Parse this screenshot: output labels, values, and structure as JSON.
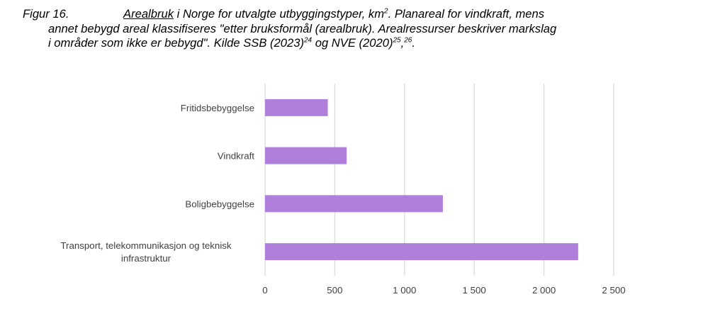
{
  "caption": {
    "label": "Figur 16.",
    "term": "Arealbruk",
    "line1": " i Norge for utvalgte utbyggingstyper, km",
    "sup_unit": "2",
    "line1_end": ". Planareal for vindkraft, mens",
    "line2": "annet bebygd areal klassifiseres \"etter bruksformål (arealbruk). Arealressurser beskriver markslag",
    "line3": "i områder som ikke er bebygd\". Kilde SSB (2023)",
    "ref1": "24",
    "line3_mid": " og NVE (2020)",
    "ref2": "25",
    "comma": ",",
    "ref3": "26",
    "line3_end": "."
  },
  "chart_data": {
    "type": "bar",
    "orientation": "horizontal",
    "categories": [
      "Fritidsbebyggelse",
      "Vindkraft",
      "Boligbebyggelse",
      "Transport, telekommunikasjon og teknisk infrastruktur"
    ],
    "category_lines": [
      [
        "Fritidsbebyggelse"
      ],
      [
        "Vindkraft"
      ],
      [
        "Boligbebyggelse"
      ],
      [
        "Transport, telekommunikasjon og teknisk",
        "infrastruktur"
      ]
    ],
    "values": [
      450,
      585,
      1275,
      2245
    ],
    "xlim": [
      0,
      2500
    ],
    "xticks": [
      0,
      500,
      1000,
      1500,
      2000,
      2500
    ],
    "xtick_labels": [
      "0",
      "500",
      "1 000",
      "1 500",
      "2 000",
      "2 500"
    ],
    "grid": true,
    "bar_color": "#b07fdb",
    "grid_color": "#d9d9d9"
  }
}
